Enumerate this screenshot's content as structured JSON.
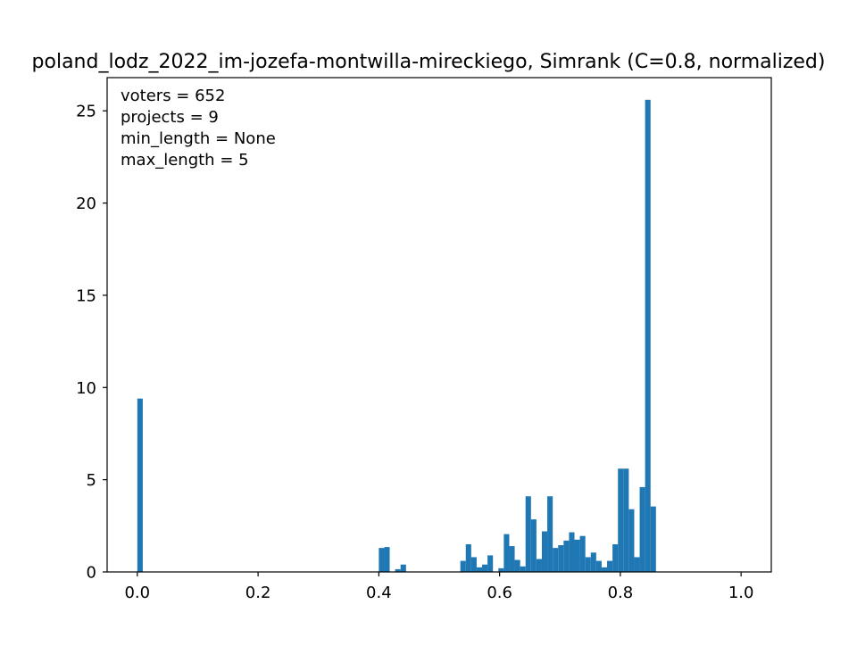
{
  "chart_data": {
    "type": "bar",
    "title": "poland_lodz_2022_im-jozefa-montwilla-mireckiego, Simrank (C=0.8, normalized)",
    "xlabel": "",
    "ylabel": "",
    "xlim": [
      -0.05,
      1.05
    ],
    "ylim": [
      0,
      26.8
    ],
    "bin_width": 0.009,
    "grid": false,
    "legend": "none",
    "bar_color": "#1f77b4",
    "x_ticks": [
      {
        "value": 0.0,
        "label": "0.0"
      },
      {
        "value": 0.2,
        "label": "0.2"
      },
      {
        "value": 0.4,
        "label": "0.4"
      },
      {
        "value": 0.6,
        "label": "0.6"
      },
      {
        "value": 0.8,
        "label": "0.8"
      },
      {
        "value": 1.0,
        "label": "1.0"
      }
    ],
    "y_ticks": [
      {
        "value": 0,
        "label": "0"
      },
      {
        "value": 5,
        "label": "5"
      },
      {
        "value": 10,
        "label": "10"
      },
      {
        "value": 15,
        "label": "15"
      },
      {
        "value": 20,
        "label": "20"
      },
      {
        "value": 25,
        "label": "25"
      }
    ],
    "annotations": [
      "voters = 652",
      "projects = 9",
      "min_length = None",
      "max_length = 5"
    ],
    "bins": [
      {
        "x": 0.0,
        "y": 9.4
      },
      {
        "x": 0.4,
        "y": 1.3
      },
      {
        "x": 0.409,
        "y": 1.35
      },
      {
        "x": 0.427,
        "y": 0.15
      },
      {
        "x": 0.436,
        "y": 0.4
      },
      {
        "x": 0.535,
        "y": 0.6
      },
      {
        "x": 0.544,
        "y": 1.5
      },
      {
        "x": 0.553,
        "y": 0.8
      },
      {
        "x": 0.562,
        "y": 0.25
      },
      {
        "x": 0.571,
        "y": 0.4
      },
      {
        "x": 0.58,
        "y": 0.9
      },
      {
        "x": 0.598,
        "y": 0.2
      },
      {
        "x": 0.607,
        "y": 2.05
      },
      {
        "x": 0.616,
        "y": 1.4
      },
      {
        "x": 0.625,
        "y": 0.65
      },
      {
        "x": 0.634,
        "y": 0.3
      },
      {
        "x": 0.643,
        "y": 4.1
      },
      {
        "x": 0.652,
        "y": 2.85
      },
      {
        "x": 0.661,
        "y": 0.7
      },
      {
        "x": 0.67,
        "y": 2.2
      },
      {
        "x": 0.679,
        "y": 4.1
      },
      {
        "x": 0.688,
        "y": 1.3
      },
      {
        "x": 0.697,
        "y": 1.45
      },
      {
        "x": 0.706,
        "y": 1.7
      },
      {
        "x": 0.715,
        "y": 2.15
      },
      {
        "x": 0.724,
        "y": 1.75
      },
      {
        "x": 0.733,
        "y": 1.95
      },
      {
        "x": 0.742,
        "y": 0.8
      },
      {
        "x": 0.751,
        "y": 1.05
      },
      {
        "x": 0.76,
        "y": 0.6
      },
      {
        "x": 0.769,
        "y": 0.25
      },
      {
        "x": 0.778,
        "y": 0.6
      },
      {
        "x": 0.787,
        "y": 1.5
      },
      {
        "x": 0.796,
        "y": 5.6
      },
      {
        "x": 0.805,
        "y": 5.6
      },
      {
        "x": 0.814,
        "y": 3.4
      },
      {
        "x": 0.823,
        "y": 0.8
      },
      {
        "x": 0.832,
        "y": 4.6
      },
      {
        "x": 0.841,
        "y": 25.6
      },
      {
        "x": 0.85,
        "y": 3.55
      }
    ]
  }
}
